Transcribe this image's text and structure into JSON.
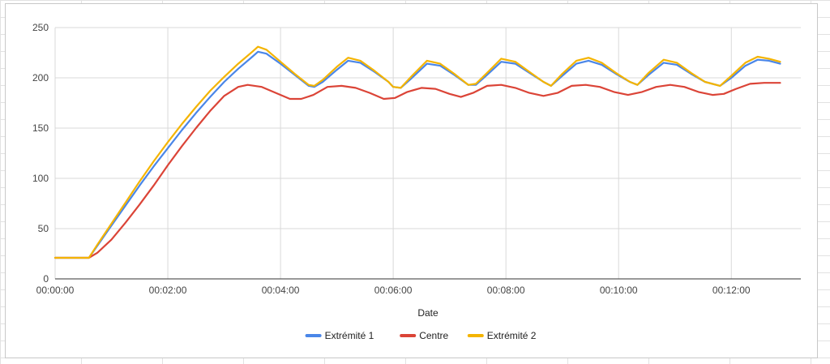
{
  "chart_data": {
    "type": "line",
    "title": "",
    "xlabel": "Date",
    "ylabel": "",
    "ylim": [
      0,
      250
    ],
    "xlim_seconds": [
      0,
      794
    ],
    "yticks": [
      0,
      50,
      100,
      150,
      200,
      250
    ],
    "xticks": [
      {
        "t": 0,
        "label": "00:00:00"
      },
      {
        "t": 120,
        "label": "00:02:00"
      },
      {
        "t": 240,
        "label": "00:04:00"
      },
      {
        "t": 360,
        "label": "00:06:00"
      },
      {
        "t": 480,
        "label": "00:08:00"
      },
      {
        "t": 600,
        "label": "00:10:00"
      },
      {
        "t": 720,
        "label": "00:12:00"
      }
    ],
    "grid": true,
    "legend": "bottom",
    "series": [
      {
        "name": "Extrémité 1",
        "color": "#4a86e8",
        "points": [
          [
            0,
            21
          ],
          [
            36,
            21
          ],
          [
            45,
            33
          ],
          [
            60,
            53
          ],
          [
            75,
            73
          ],
          [
            90,
            93
          ],
          [
            105,
            112
          ],
          [
            120,
            130
          ],
          [
            135,
            148
          ],
          [
            150,
            165
          ],
          [
            165,
            181
          ],
          [
            180,
            196
          ],
          [
            195,
            209
          ],
          [
            210,
            221
          ],
          [
            216,
            226
          ],
          [
            225,
            224
          ],
          [
            240,
            214
          ],
          [
            255,
            203
          ],
          [
            270,
            192
          ],
          [
            276,
            191
          ],
          [
            285,
            196
          ],
          [
            300,
            208
          ],
          [
            312,
            217
          ],
          [
            325,
            215
          ],
          [
            340,
            206
          ],
          [
            355,
            196
          ],
          [
            360,
            191
          ],
          [
            368,
            190
          ],
          [
            380,
            200
          ],
          [
            396,
            214
          ],
          [
            410,
            212
          ],
          [
            425,
            203
          ],
          [
            440,
            193
          ],
          [
            448,
            193
          ],
          [
            460,
            203
          ],
          [
            475,
            216
          ],
          [
            490,
            214
          ],
          [
            505,
            205
          ],
          [
            520,
            196
          ],
          [
            528,
            192
          ],
          [
            540,
            202
          ],
          [
            555,
            214
          ],
          [
            568,
            217
          ],
          [
            582,
            213
          ],
          [
            597,
            204
          ],
          [
            612,
            196
          ],
          [
            620,
            193
          ],
          [
            632,
            203
          ],
          [
            648,
            215
          ],
          [
            662,
            213
          ],
          [
            677,
            204
          ],
          [
            692,
            196
          ],
          [
            708,
            192
          ],
          [
            720,
            200
          ],
          [
            735,
            212
          ],
          [
            748,
            218
          ],
          [
            760,
            217
          ],
          [
            772,
            214
          ]
        ]
      },
      {
        "name": "Centre",
        "color": "#db4437",
        "points": [
          [
            0,
            21
          ],
          [
            36,
            21
          ],
          [
            45,
            26
          ],
          [
            60,
            39
          ],
          [
            75,
            56
          ],
          [
            90,
            74
          ],
          [
            105,
            93
          ],
          [
            120,
            113
          ],
          [
            135,
            132
          ],
          [
            150,
            150
          ],
          [
            165,
            167
          ],
          [
            180,
            182
          ],
          [
            195,
            191
          ],
          [
            205,
            193
          ],
          [
            220,
            191
          ],
          [
            235,
            185
          ],
          [
            250,
            179
          ],
          [
            262,
            179
          ],
          [
            275,
            183
          ],
          [
            290,
            191
          ],
          [
            305,
            192
          ],
          [
            320,
            190
          ],
          [
            335,
            185
          ],
          [
            350,
            179
          ],
          [
            362,
            180
          ],
          [
            375,
            186
          ],
          [
            390,
            190
          ],
          [
            405,
            189
          ],
          [
            420,
            184
          ],
          [
            432,
            181
          ],
          [
            445,
            185
          ],
          [
            460,
            192
          ],
          [
            475,
            193
          ],
          [
            490,
            190
          ],
          [
            505,
            185
          ],
          [
            520,
            182
          ],
          [
            535,
            185
          ],
          [
            550,
            192
          ],
          [
            565,
            193
          ],
          [
            580,
            191
          ],
          [
            595,
            186
          ],
          [
            610,
            183
          ],
          [
            625,
            186
          ],
          [
            640,
            191
          ],
          [
            655,
            193
          ],
          [
            670,
            191
          ],
          [
            685,
            186
          ],
          [
            700,
            183
          ],
          [
            712,
            184
          ],
          [
            725,
            189
          ],
          [
            740,
            194
          ],
          [
            755,
            195
          ],
          [
            772,
            195
          ]
        ]
      },
      {
        "name": "Extrémité 2",
        "color": "#f4b400",
        "points": [
          [
            0,
            21
          ],
          [
            36,
            21
          ],
          [
            45,
            34
          ],
          [
            60,
            55
          ],
          [
            75,
            76
          ],
          [
            90,
            97
          ],
          [
            105,
            117
          ],
          [
            120,
            136
          ],
          [
            135,
            154
          ],
          [
            150,
            171
          ],
          [
            165,
            187
          ],
          [
            180,
            201
          ],
          [
            195,
            214
          ],
          [
            210,
            226
          ],
          [
            216,
            231
          ],
          [
            225,
            228
          ],
          [
            240,
            216
          ],
          [
            255,
            204
          ],
          [
            270,
            193
          ],
          [
            276,
            192
          ],
          [
            285,
            198
          ],
          [
            300,
            211
          ],
          [
            312,
            220
          ],
          [
            325,
            217
          ],
          [
            340,
            207
          ],
          [
            355,
            196
          ],
          [
            360,
            191
          ],
          [
            368,
            190
          ],
          [
            380,
            202
          ],
          [
            396,
            217
          ],
          [
            410,
            214
          ],
          [
            425,
            204
          ],
          [
            440,
            193
          ],
          [
            448,
            194
          ],
          [
            460,
            205
          ],
          [
            475,
            219
          ],
          [
            490,
            216
          ],
          [
            505,
            206
          ],
          [
            520,
            196
          ],
          [
            528,
            192
          ],
          [
            540,
            204
          ],
          [
            555,
            217
          ],
          [
            568,
            220
          ],
          [
            582,
            215
          ],
          [
            597,
            205
          ],
          [
            612,
            196
          ],
          [
            620,
            193
          ],
          [
            632,
            205
          ],
          [
            648,
            218
          ],
          [
            662,
            215
          ],
          [
            677,
            205
          ],
          [
            692,
            196
          ],
          [
            708,
            192
          ],
          [
            720,
            202
          ],
          [
            735,
            215
          ],
          [
            748,
            221
          ],
          [
            760,
            219
          ],
          [
            772,
            216
          ]
        ]
      }
    ]
  }
}
